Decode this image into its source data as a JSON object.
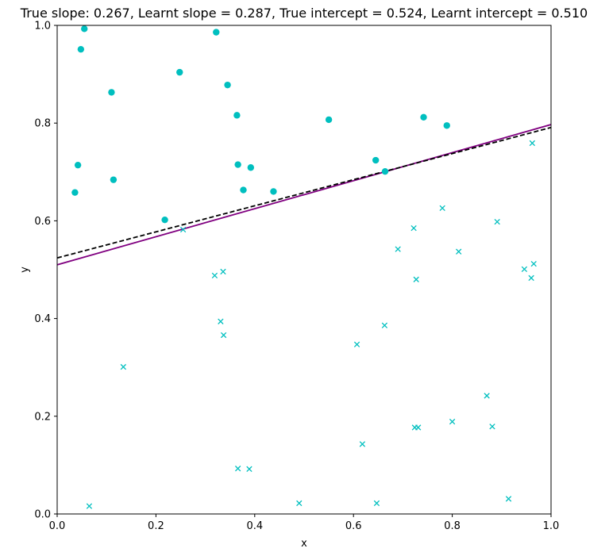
{
  "chart_data": {
    "type": "scatter",
    "title": "True slope: 0.267, Learnt slope = 0.287, True intercept = 0.524, Learnt intercept = 0.510",
    "xlabel": "x",
    "ylabel": "y",
    "xlim": [
      0.0,
      1.0
    ],
    "ylim": [
      0.0,
      1.0
    ],
    "xticks": [
      "0.0",
      "0.2",
      "0.4",
      "0.6",
      "0.8",
      "1.0"
    ],
    "yticks": [
      "0.0",
      "0.2",
      "0.4",
      "0.6",
      "0.8",
      "1.0"
    ],
    "grid": false,
    "point_color": "#00bfbf",
    "series": [
      {
        "marker": "circle",
        "points": [
          [
            0.055,
            0.993
          ],
          [
            0.322,
            0.986
          ],
          [
            0.048,
            0.951
          ],
          [
            0.248,
            0.904
          ],
          [
            0.345,
            0.878
          ],
          [
            0.11,
            0.863
          ],
          [
            0.364,
            0.816
          ],
          [
            0.742,
            0.812
          ],
          [
            0.55,
            0.807
          ],
          [
            0.789,
            0.795
          ],
          [
            0.645,
            0.724
          ],
          [
            0.042,
            0.714
          ],
          [
            0.366,
            0.715
          ],
          [
            0.392,
            0.709
          ],
          [
            0.664,
            0.701
          ],
          [
            0.114,
            0.684
          ],
          [
            0.377,
            0.663
          ],
          [
            0.438,
            0.66
          ],
          [
            0.036,
            0.658
          ],
          [
            0.218,
            0.602
          ]
        ]
      },
      {
        "marker": "x",
        "points": [
          [
            0.962,
            0.759
          ],
          [
            0.78,
            0.626
          ],
          [
            0.891,
            0.598
          ],
          [
            0.722,
            0.585
          ],
          [
            0.255,
            0.582
          ],
          [
            0.69,
            0.542
          ],
          [
            0.813,
            0.537
          ],
          [
            0.965,
            0.512
          ],
          [
            0.946,
            0.501
          ],
          [
            0.336,
            0.496
          ],
          [
            0.319,
            0.488
          ],
          [
            0.96,
            0.483
          ],
          [
            0.727,
            0.48
          ],
          [
            0.331,
            0.394
          ],
          [
            0.663,
            0.386
          ],
          [
            0.337,
            0.366
          ],
          [
            0.607,
            0.347
          ],
          [
            0.134,
            0.301
          ],
          [
            0.87,
            0.242
          ],
          [
            0.8,
            0.189
          ],
          [
            0.881,
            0.179
          ],
          [
            0.724,
            0.177
          ],
          [
            0.731,
            0.177
          ],
          [
            0.618,
            0.143
          ],
          [
            0.366,
            0.093
          ],
          [
            0.389,
            0.092
          ],
          [
            0.914,
            0.031
          ],
          [
            0.49,
            0.022
          ],
          [
            0.647,
            0.022
          ],
          [
            0.065,
            0.016
          ]
        ]
      }
    ],
    "lines": [
      {
        "style": "solid",
        "color": "#800080",
        "slope": 0.287,
        "intercept": 0.51
      },
      {
        "style": "dashed",
        "color": "#000000",
        "slope": 0.267,
        "intercept": 0.524
      }
    ]
  }
}
